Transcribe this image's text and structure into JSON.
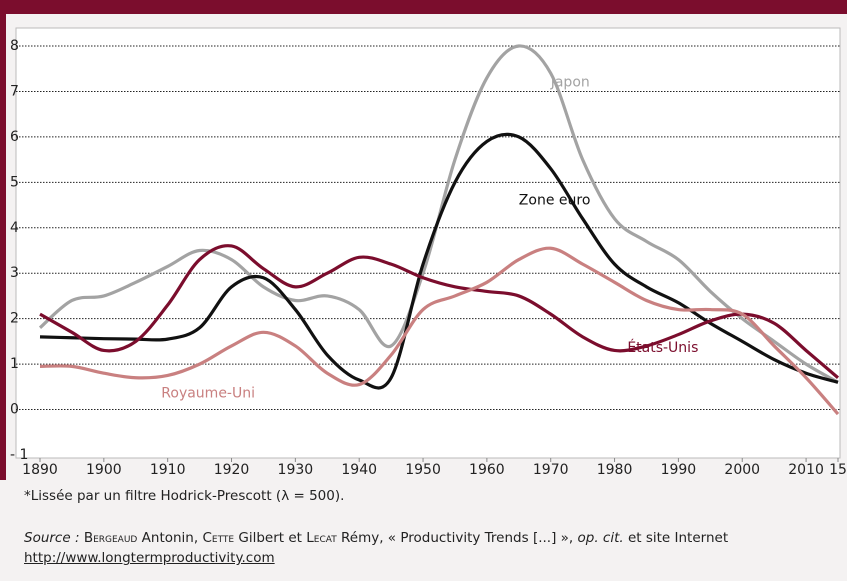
{
  "chart_data": {
    "type": "line",
    "x": [
      1890,
      1895,
      1900,
      1905,
      1910,
      1915,
      1920,
      1925,
      1930,
      1935,
      1940,
      1945,
      1950,
      1955,
      1960,
      1965,
      1970,
      1975,
      1980,
      1985,
      1990,
      1995,
      2000,
      2005,
      2010,
      2015
    ],
    "series": [
      {
        "name": "Japon",
        "color": "#a3a3a3",
        "values": [
          1.8,
          2.4,
          2.5,
          2.8,
          3.15,
          3.5,
          3.3,
          2.7,
          2.4,
          2.5,
          2.2,
          1.4,
          3.0,
          5.5,
          7.3,
          8.0,
          7.4,
          5.5,
          4.2,
          3.7,
          3.3,
          2.6,
          2.0,
          1.5,
          1.0,
          0.6
        ]
      },
      {
        "name": "Zone euro",
        "color": "#111111",
        "values": [
          1.6,
          1.58,
          1.56,
          1.55,
          1.55,
          1.8,
          2.7,
          2.9,
          2.2,
          1.2,
          0.65,
          0.7,
          3.2,
          5.0,
          5.9,
          6.0,
          5.3,
          4.2,
          3.2,
          2.7,
          2.35,
          1.9,
          1.5,
          1.1,
          0.8,
          0.6
        ]
      },
      {
        "name": "États-Unis",
        "color": "#7b0d2d",
        "values": [
          2.1,
          1.7,
          1.3,
          1.5,
          2.3,
          3.3,
          3.6,
          3.1,
          2.7,
          3.0,
          3.35,
          3.2,
          2.9,
          2.7,
          2.6,
          2.5,
          2.1,
          1.6,
          1.3,
          1.4,
          1.65,
          1.95,
          2.1,
          1.9,
          1.3,
          0.7
        ]
      },
      {
        "name": "Royaume-Uni",
        "color": "#c98080",
        "values": [
          0.95,
          0.95,
          0.8,
          0.7,
          0.75,
          1.0,
          1.4,
          1.7,
          1.4,
          0.8,
          0.55,
          1.2,
          2.2,
          2.5,
          2.8,
          3.3,
          3.55,
          3.2,
          2.8,
          2.4,
          2.2,
          2.2,
          2.1,
          1.4,
          0.7,
          -0.1
        ]
      }
    ],
    "xlim": [
      1890,
      2015
    ],
    "xticks": [
      1890,
      1900,
      1910,
      1920,
      1930,
      1940,
      1950,
      1960,
      1970,
      1980,
      1990,
      2000,
      2010,
      {
        "value": 2015,
        "label": "15"
      }
    ],
    "ylim": [
      -1,
      8
    ],
    "yticks": [
      {
        "value": -1,
        "label": "- 1"
      },
      0,
      1,
      2,
      3,
      4,
      5,
      6,
      7,
      8
    ],
    "grid": true
  },
  "notes": {
    "footnote": "*Lissée par un filtre Hodrick-Prescott (λ = 500).",
    "source": [
      {
        "text": "Source :",
        "style": "italic"
      },
      {
        "text": " ",
        "style": "normal"
      },
      {
        "text": "Bergeaud",
        "style": "smallcaps"
      },
      {
        "text": " Antonin, ",
        "style": "normal"
      },
      {
        "text": "Cette",
        "style": "smallcaps"
      },
      {
        "text": " Gilbert et ",
        "style": "normal"
      },
      {
        "text": "Lecat",
        "style": "smallcaps"
      },
      {
        "text": " Rémy, « Productivity Trends [...] », ",
        "style": "normal"
      },
      {
        "text": "op. cit.",
        "style": "italic"
      },
      {
        "text": " et site Internet ",
        "style": "normal"
      },
      {
        "text": "http://www.longtermproductivity.com",
        "style": "link"
      }
    ]
  }
}
